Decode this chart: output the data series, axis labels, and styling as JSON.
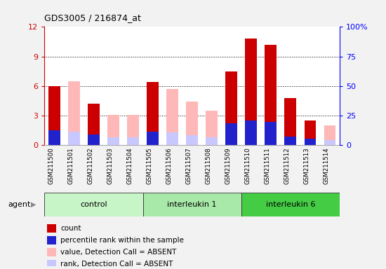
{
  "title": "GDS3005 / 216874_at",
  "samples": [
    "GSM211500",
    "GSM211501",
    "GSM211502",
    "GSM211503",
    "GSM211504",
    "GSM211505",
    "GSM211506",
    "GSM211507",
    "GSM211508",
    "GSM211509",
    "GSM211510",
    "GSM211511",
    "GSM211512",
    "GSM211513",
    "GSM211514"
  ],
  "red_bars": [
    6.0,
    0.0,
    4.2,
    0.0,
    0.0,
    6.4,
    0.0,
    0.0,
    0.0,
    7.5,
    10.8,
    10.2,
    4.8,
    2.5,
    0.0
  ],
  "blue_bars": [
    1.5,
    0.0,
    1.1,
    0.0,
    0.0,
    1.4,
    0.0,
    0.0,
    0.0,
    2.2,
    2.5,
    2.4,
    0.9,
    0.7,
    0.0
  ],
  "pink_bars": [
    0.0,
    6.5,
    0.0,
    3.1,
    3.1,
    0.0,
    5.7,
    4.4,
    3.5,
    0.0,
    0.0,
    0.0,
    0.0,
    0.0,
    2.0
  ],
  "lavender_bars": [
    0.0,
    1.4,
    0.0,
    0.8,
    0.8,
    0.0,
    1.3,
    1.0,
    0.8,
    0.0,
    0.0,
    0.0,
    0.0,
    0.0,
    0.5
  ],
  "group_boundaries": [
    [
      0,
      5,
      "control",
      "#c8f5c8"
    ],
    [
      5,
      10,
      "interleukin 1",
      "#a8e8a8"
    ],
    [
      10,
      15,
      "interleukin 6",
      "#44cc44"
    ]
  ],
  "ylim_left": [
    0,
    12
  ],
  "ylim_right": [
    0,
    100
  ],
  "yticks_left": [
    0,
    3,
    6,
    9,
    12
  ],
  "yticks_right": [
    0,
    25,
    50,
    75,
    100
  ],
  "ytick_labels_right": [
    "0",
    "25",
    "50",
    "75",
    "100%"
  ],
  "bar_width": 0.6,
  "red_color": "#cc0000",
  "blue_color": "#2222cc",
  "pink_color": "#ffb8b8",
  "lavender_color": "#c8c8ff",
  "legend_items": [
    {
      "color": "#cc0000",
      "marker": "s",
      "label": "count"
    },
    {
      "color": "#2222cc",
      "marker": "s",
      "label": "percentile rank within the sample"
    },
    {
      "color": "#ffb8b8",
      "marker": "s",
      "label": "value, Detection Call = ABSENT"
    },
    {
      "color": "#c8c8ff",
      "marker": "s",
      "label": "rank, Detection Call = ABSENT"
    }
  ]
}
